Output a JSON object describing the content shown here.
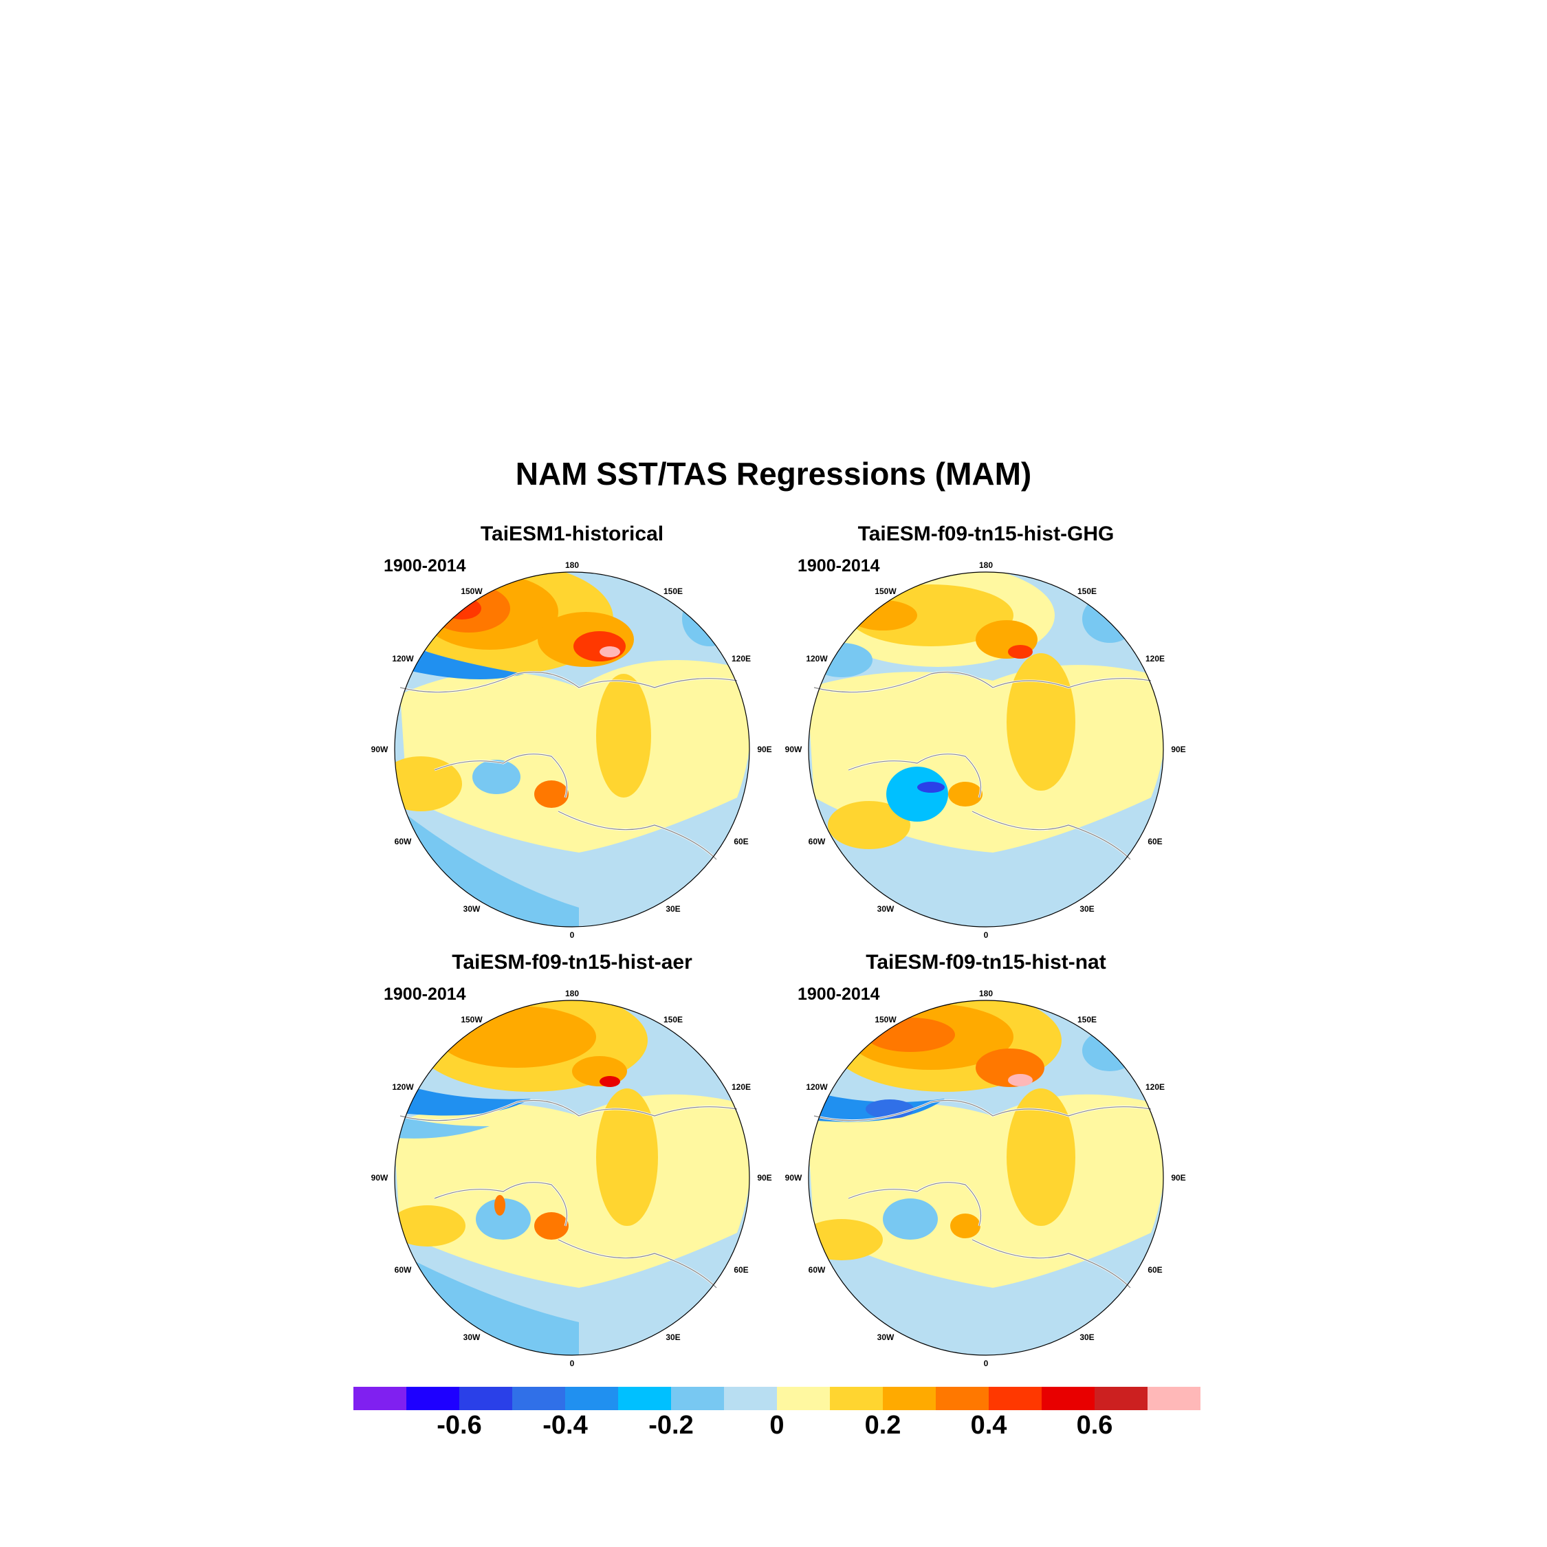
{
  "title": "NAM SST/TAS Regressions (MAM)",
  "panels": [
    {
      "title": "TaiESM1-historical",
      "period": "1900-2014"
    },
    {
      "title": "TaiESM-f09-tn15-hist-GHG",
      "period": "1900-2014"
    },
    {
      "title": "TaiESM-f09-tn15-hist-aer",
      "period": "1900-2014"
    },
    {
      "title": "TaiESM-f09-tn15-hist-nat",
      "period": "1900-2014"
    }
  ],
  "longitude_labels": [
    "180",
    "150E",
    "120E",
    "90E",
    "60E",
    "30E",
    "0",
    "30W",
    "60W",
    "90W",
    "120W",
    "150W"
  ],
  "colorbar": {
    "colors": [
      "#8020f0",
      "#1e00ff",
      "#2a40e8",
      "#3070e8",
      "#2090f0",
      "#00c0ff",
      "#78c8f2",
      "#b8def2",
      "#fff8a0",
      "#ffd530",
      "#ffaa00",
      "#ff7800",
      "#ff3800",
      "#e80000",
      "#cc2020",
      "#ffb8b8"
    ],
    "labels": [
      "-0.6",
      "-0.4",
      "-0.2",
      "0",
      "0.2",
      "0.4",
      "0.6"
    ],
    "label_values": [
      -0.6,
      -0.4,
      -0.2,
      0,
      0.2,
      0.4,
      0.6
    ],
    "min": -0.8,
    "max": 0.8
  }
}
